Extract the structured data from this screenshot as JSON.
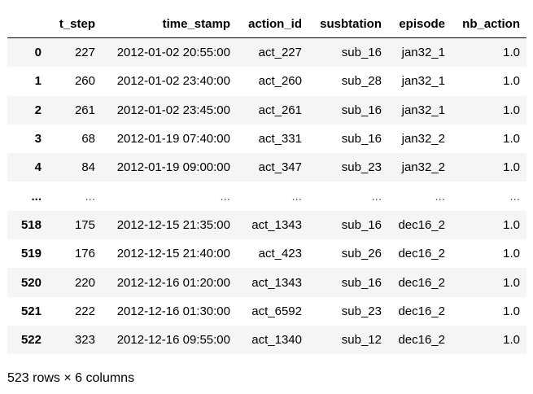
{
  "table": {
    "columns": [
      "",
      "t_step",
      "time_stamp",
      "action_id",
      "susbtation",
      "episode",
      "nb_action"
    ],
    "rows": [
      [
        "0",
        "227",
        "2012-01-02 20:55:00",
        "act_227",
        "sub_16",
        "jan32_1",
        "1.0"
      ],
      [
        "1",
        "260",
        "2012-01-02 23:40:00",
        "act_260",
        "sub_28",
        "jan32_1",
        "1.0"
      ],
      [
        "2",
        "261",
        "2012-01-02 23:45:00",
        "act_261",
        "sub_16",
        "jan32_1",
        "1.0"
      ],
      [
        "3",
        "68",
        "2012-01-19 07:40:00",
        "act_331",
        "sub_16",
        "jan32_2",
        "1.0"
      ],
      [
        "4",
        "84",
        "2012-01-19 09:00:00",
        "act_347",
        "sub_23",
        "jan32_2",
        "1.0"
      ],
      [
        "...",
        "...",
        "...",
        "...",
        "...",
        "...",
        "..."
      ],
      [
        "518",
        "175",
        "2012-12-15 21:35:00",
        "act_1343",
        "sub_16",
        "dec16_2",
        "1.0"
      ],
      [
        "519",
        "176",
        "2012-12-15 21:40:00",
        "act_423",
        "sub_26",
        "dec16_2",
        "1.0"
      ],
      [
        "520",
        "220",
        "2012-12-16 01:20:00",
        "act_1343",
        "sub_16",
        "dec16_2",
        "1.0"
      ],
      [
        "521",
        "222",
        "2012-12-16 01:30:00",
        "act_6592",
        "sub_23",
        "dec16_2",
        "1.0"
      ],
      [
        "522",
        "323",
        "2012-12-16 09:55:00",
        "act_1340",
        "sub_12",
        "dec16_2",
        "1.0"
      ]
    ]
  },
  "summary": "523 rows × 6 columns"
}
